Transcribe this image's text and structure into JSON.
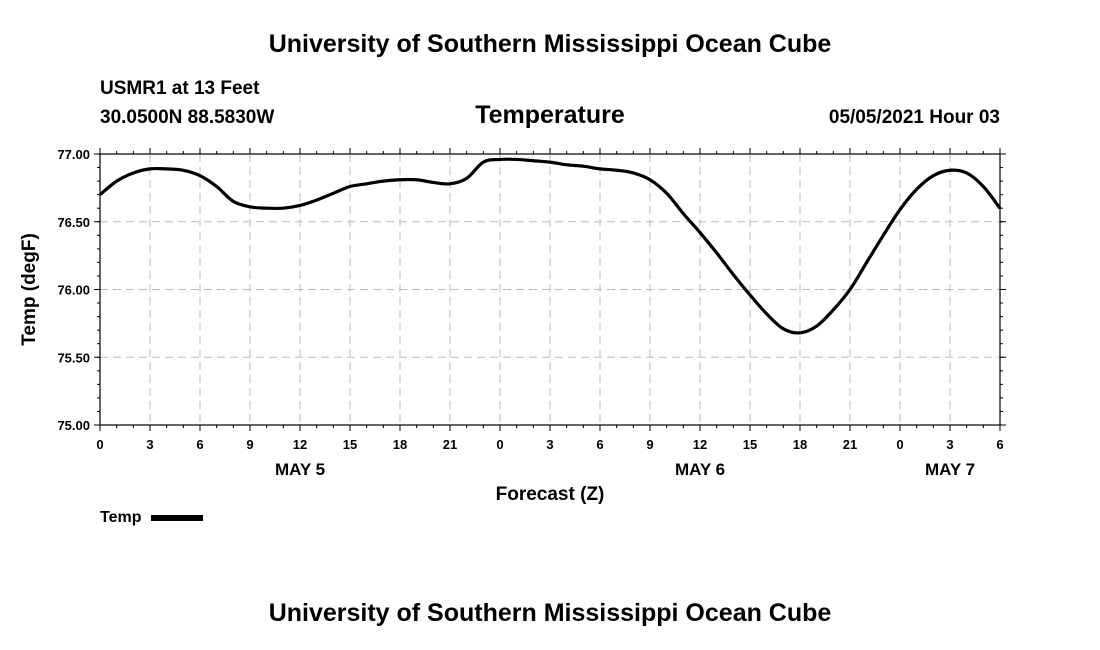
{
  "header": {
    "title": "University of Southern Mississippi Ocean Cube",
    "station": "USMR1 at 13 Feet",
    "coords": "30.0500N  88.5830W",
    "parameter": "Temperature",
    "datetime": "05/05/2021 Hour 03"
  },
  "footer": {
    "title": "University of Southern Mississippi Ocean Cube"
  },
  "legend": {
    "label": "Temp",
    "color": "#000000"
  },
  "chart_data": {
    "type": "line",
    "title": "Temperature",
    "xlabel": "Forecast (Z)",
    "ylabel": "Temp (degF)",
    "ylim": [
      75.0,
      77.0
    ],
    "xlim": [
      0,
      54
    ],
    "grid": true,
    "y_ticks": [
      "75.00",
      "75.50",
      "76.00",
      "76.50",
      "77.00"
    ],
    "y_tick_values": [
      75.0,
      75.5,
      76.0,
      76.5,
      77.0
    ],
    "x_ticks": [
      {
        "hour": 0,
        "label": "0"
      },
      {
        "hour": 3,
        "label": "3"
      },
      {
        "hour": 6,
        "label": "6"
      },
      {
        "hour": 9,
        "label": "9"
      },
      {
        "hour": 12,
        "label": "12"
      },
      {
        "hour": 15,
        "label": "15"
      },
      {
        "hour": 18,
        "label": "18"
      },
      {
        "hour": 21,
        "label": "21"
      },
      {
        "hour": 24,
        "label": "0"
      },
      {
        "hour": 27,
        "label": "3"
      },
      {
        "hour": 30,
        "label": "6"
      },
      {
        "hour": 33,
        "label": "9"
      },
      {
        "hour": 36,
        "label": "12"
      },
      {
        "hour": 39,
        "label": "15"
      },
      {
        "hour": 42,
        "label": "18"
      },
      {
        "hour": 45,
        "label": "21"
      },
      {
        "hour": 48,
        "label": "0"
      },
      {
        "hour": 51,
        "label": "3"
      },
      {
        "hour": 54,
        "label": "6"
      }
    ],
    "day_labels": [
      {
        "hour": 12,
        "label": "MAY 5"
      },
      {
        "hour": 36,
        "label": "MAY 6"
      },
      {
        "hour": 51,
        "label": "MAY 7"
      }
    ],
    "series": [
      {
        "name": "Temp",
        "x": [
          0,
          1,
          2,
          3,
          4,
          5,
          6,
          7,
          8,
          9,
          10,
          11,
          12,
          13,
          14,
          15,
          16,
          17,
          18,
          19,
          20,
          21,
          22,
          23,
          24,
          25,
          26,
          27,
          28,
          29,
          30,
          31,
          32,
          33,
          34,
          35,
          36,
          37,
          38,
          39,
          40,
          41,
          42,
          43,
          44,
          45,
          46,
          47,
          48,
          49,
          50,
          51,
          52,
          53,
          54
        ],
        "values": [
          76.7,
          76.8,
          76.86,
          76.89,
          76.89,
          76.88,
          76.84,
          76.76,
          76.65,
          76.61,
          76.6,
          76.6,
          76.62,
          76.66,
          76.71,
          76.76,
          76.78,
          76.8,
          76.81,
          76.81,
          76.79,
          76.78,
          76.82,
          76.94,
          76.96,
          76.96,
          76.95,
          76.94,
          76.92,
          76.91,
          76.89,
          76.88,
          76.86,
          76.81,
          76.71,
          76.56,
          76.42,
          76.27,
          76.11,
          75.96,
          75.82,
          75.71,
          75.68,
          75.73,
          75.85,
          76.0,
          76.2,
          76.4,
          76.59,
          76.74,
          76.84,
          76.88,
          76.86,
          76.76,
          76.6
        ]
      }
    ]
  }
}
